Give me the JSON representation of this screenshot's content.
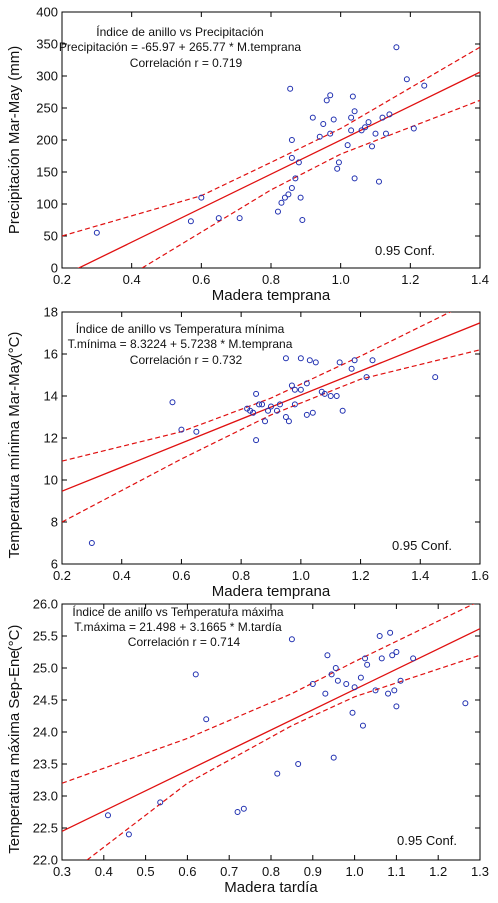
{
  "chart_data": [
    {
      "type": "scatter",
      "title": "Índice de anillo vs Precipitación",
      "equation": "Precipitación = -65.97 + 265.77 * M.temprana",
      "correlation": "Correlación r = 0.719",
      "conf_label": "0.95 Conf.",
      "xlabel": "Madera temprana",
      "ylabel": "Precipitación Mar-May (mm)",
      "xlim": [
        0.2,
        1.4
      ],
      "ylim": [
        0,
        400
      ],
      "xticks": [
        0.2,
        0.4,
        0.6,
        0.8,
        1.0,
        1.2,
        1.4
      ],
      "yticks": [
        0,
        50,
        100,
        150,
        200,
        250,
        300,
        350,
        400
      ],
      "xtick_labels": [
        "0.2",
        "0.4",
        "0.6",
        "0.8",
        "1.0",
        "1.2",
        "1.4"
      ],
      "ytick_labels": [
        "0",
        "50",
        "100",
        "150",
        "200",
        "250",
        "300",
        "350",
        "400"
      ],
      "regression": {
        "intercept": -65.97,
        "slope": 265.77
      },
      "confidence_band": {
        "lower": [
          [
            0.43,
            0
          ],
          [
            0.8,
            122
          ],
          [
            1.0,
            178
          ],
          [
            1.4,
            262
          ]
        ],
        "upper": [
          [
            0.2,
            50
          ],
          [
            0.6,
            113
          ],
          [
            0.8,
            165
          ],
          [
            1.0,
            218
          ],
          [
            1.4,
            345
          ]
        ]
      },
      "points": [
        [
          0.3,
          55
        ],
        [
          0.57,
          73
        ],
        [
          0.6,
          110
        ],
        [
          0.65,
          78
        ],
        [
          0.71,
          78
        ],
        [
          0.82,
          88
        ],
        [
          0.83,
          102
        ],
        [
          0.84,
          110
        ],
        [
          0.85,
          115
        ],
        [
          0.86,
          125
        ],
        [
          0.86,
          172
        ],
        [
          0.86,
          200
        ],
        [
          0.855,
          280
        ],
        [
          0.87,
          140
        ],
        [
          0.88,
          165
        ],
        [
          0.885,
          110
        ],
        [
          0.89,
          75
        ],
        [
          0.92,
          235
        ],
        [
          0.94,
          205
        ],
        [
          0.95,
          225
        ],
        [
          0.96,
          262
        ],
        [
          0.97,
          270
        ],
        [
          0.97,
          210
        ],
        [
          0.98,
          232
        ],
        [
          0.99,
          155
        ],
        [
          0.995,
          165
        ],
        [
          1.02,
          192
        ],
        [
          1.03,
          235
        ],
        [
          1.03,
          215
        ],
        [
          1.035,
          268
        ],
        [
          1.04,
          245
        ],
        [
          1.04,
          140
        ],
        [
          1.06,
          215
        ],
        [
          1.07,
          220
        ],
        [
          1.08,
          228
        ],
        [
          1.09,
          190
        ],
        [
          1.1,
          210
        ],
        [
          1.11,
          135
        ],
        [
          1.12,
          235
        ],
        [
          1.13,
          210
        ],
        [
          1.14,
          240
        ],
        [
          1.16,
          345
        ],
        [
          1.19,
          295
        ],
        [
          1.21,
          218
        ],
        [
          1.24,
          285
        ]
      ]
    },
    {
      "type": "scatter",
      "title": "Índice de anillo vs Temperatura mínima",
      "equation": "T.mínima = 8.3224 + 5.7238 * M.temprana",
      "correlation": "Correlación r = 0.732",
      "conf_label": "0.95 Conf.",
      "xlabel": "Madera temprana",
      "ylabel": "Temperatura mínima Mar-May",
      "ylabel_unit": "(°C)",
      "xlim": [
        0.2,
        1.6
      ],
      "ylim": [
        6,
        18
      ],
      "xticks": [
        0.2,
        0.4,
        0.6,
        0.8,
        1.0,
        1.2,
        1.4,
        1.6
      ],
      "yticks": [
        6,
        8,
        10,
        12,
        14,
        16,
        18
      ],
      "xtick_labels": [
        "0.2",
        "0.4",
        "0.6",
        "0.8",
        "1.0",
        "1.2",
        "1.4",
        "1.6"
      ],
      "ytick_labels": [
        "6",
        "8",
        "10",
        "12",
        "14",
        "16",
        "18"
      ],
      "regression": {
        "intercept": 8.3224,
        "slope": 5.7238
      },
      "confidence_band": {
        "lower": [
          [
            0.2,
            8.0
          ],
          [
            0.6,
            11.0
          ],
          [
            0.9,
            13.1
          ],
          [
            1.2,
            14.8
          ],
          [
            1.6,
            16.2
          ]
        ],
        "upper": [
          [
            0.2,
            10.9
          ],
          [
            0.6,
            12.3
          ],
          [
            0.9,
            13.9
          ],
          [
            1.2,
            15.9
          ],
          [
            1.6,
            18.7
          ]
        ]
      },
      "points": [
        [
          0.3,
          7.0
        ],
        [
          0.57,
          13.7
        ],
        [
          0.6,
          12.4
        ],
        [
          0.65,
          12.3
        ],
        [
          0.82,
          13.4
        ],
        [
          0.83,
          13.3
        ],
        [
          0.84,
          13.2
        ],
        [
          0.85,
          11.9
        ],
        [
          0.85,
          14.1
        ],
        [
          0.86,
          13.6
        ],
        [
          0.87,
          13.6
        ],
        [
          0.88,
          12.8
        ],
        [
          0.89,
          13.3
        ],
        [
          0.9,
          13.5
        ],
        [
          0.92,
          13.3
        ],
        [
          0.93,
          13.6
        ],
        [
          0.95,
          15.8
        ],
        [
          0.95,
          13.0
        ],
        [
          0.96,
          12.8
        ],
        [
          0.97,
          14.5
        ],
        [
          0.98,
          13.6
        ],
        [
          0.98,
          14.3
        ],
        [
          1.0,
          14.3
        ],
        [
          1.0,
          15.8
        ],
        [
          1.02,
          13.1
        ],
        [
          1.02,
          14.6
        ],
        [
          1.03,
          15.7
        ],
        [
          1.04,
          13.2
        ],
        [
          1.05,
          15.6
        ],
        [
          1.07,
          14.2
        ],
        [
          1.08,
          14.1
        ],
        [
          1.1,
          14.0
        ],
        [
          1.12,
          14.0
        ],
        [
          1.13,
          15.6
        ],
        [
          1.14,
          13.3
        ],
        [
          1.17,
          15.3
        ],
        [
          1.18,
          15.7
        ],
        [
          1.22,
          14.9
        ],
        [
          1.24,
          15.7
        ],
        [
          1.45,
          14.9
        ]
      ]
    },
    {
      "type": "scatter",
      "title": "Índice de anillo vs Temperatura máxima",
      "equation": "T.máxima = 21.498 + 3.1665 * M.tardía",
      "correlation": "Correlación r = 0.714",
      "conf_label": "0.95 Conf.",
      "xlabel": "Madera tardía",
      "ylabel": "Temperatura máxima Sep-Ene",
      "ylabel_unit": "(°C)",
      "xlim": [
        0.3,
        1.3
      ],
      "ylim": [
        22,
        26
      ],
      "xticks": [
        0.3,
        0.4,
        0.5,
        0.6,
        0.7,
        0.8,
        0.9,
        1.0,
        1.1,
        1.2,
        1.3
      ],
      "yticks": [
        22.0,
        22.5,
        23.0,
        23.5,
        24.0,
        24.5,
        25.0,
        25.5,
        26.0
      ],
      "xtick_labels": [
        "0.3",
        "0.4",
        "0.5",
        "0.6",
        "0.7",
        "0.8",
        "0.9",
        "1.0",
        "1.1",
        "1.2",
        "1.3"
      ],
      "ytick_labels": [
        "22.0",
        "22.5",
        "23.0",
        "23.5",
        "24.0",
        "24.5",
        "25.0",
        "25.5",
        "26.0"
      ],
      "regression": {
        "intercept": 21.498,
        "slope": 3.1665
      },
      "confidence_band": {
        "lower": [
          [
            0.36,
            22.0
          ],
          [
            0.6,
            23.2
          ],
          [
            0.85,
            24.1
          ],
          [
            1.0,
            24.55
          ],
          [
            1.3,
            25.2
          ]
        ],
        "upper": [
          [
            0.3,
            23.2
          ],
          [
            0.6,
            23.9
          ],
          [
            0.85,
            24.6
          ],
          [
            1.0,
            25.1
          ],
          [
            1.3,
            26.05
          ]
        ]
      },
      "points": [
        [
          0.41,
          22.7
        ],
        [
          0.46,
          22.4
        ],
        [
          0.535,
          22.9
        ],
        [
          0.62,
          24.9
        ],
        [
          0.645,
          24.2
        ],
        [
          0.72,
          22.75
        ],
        [
          0.735,
          22.8
        ],
        [
          0.815,
          23.35
        ],
        [
          0.85,
          25.45
        ],
        [
          0.865,
          23.5
        ],
        [
          0.9,
          24.75
        ],
        [
          0.93,
          24.6
        ],
        [
          0.935,
          25.2
        ],
        [
          0.945,
          24.9
        ],
        [
          0.95,
          23.6
        ],
        [
          0.955,
          25.0
        ],
        [
          0.96,
          24.8
        ],
        [
          0.98,
          24.75
        ],
        [
          0.995,
          24.3
        ],
        [
          1.0,
          24.7
        ],
        [
          1.015,
          24.85
        ],
        [
          1.02,
          24.1
        ],
        [
          1.025,
          25.15
        ],
        [
          1.03,
          25.05
        ],
        [
          1.05,
          24.65
        ],
        [
          1.06,
          25.5
        ],
        [
          1.065,
          25.15
        ],
        [
          1.08,
          24.6
        ],
        [
          1.085,
          25.55
        ],
        [
          1.09,
          25.2
        ],
        [
          1.095,
          24.65
        ],
        [
          1.1,
          25.25
        ],
        [
          1.1,
          24.4
        ],
        [
          1.11,
          24.8
        ],
        [
          1.14,
          25.15
        ],
        [
          1.265,
          24.45
        ]
      ]
    }
  ]
}
